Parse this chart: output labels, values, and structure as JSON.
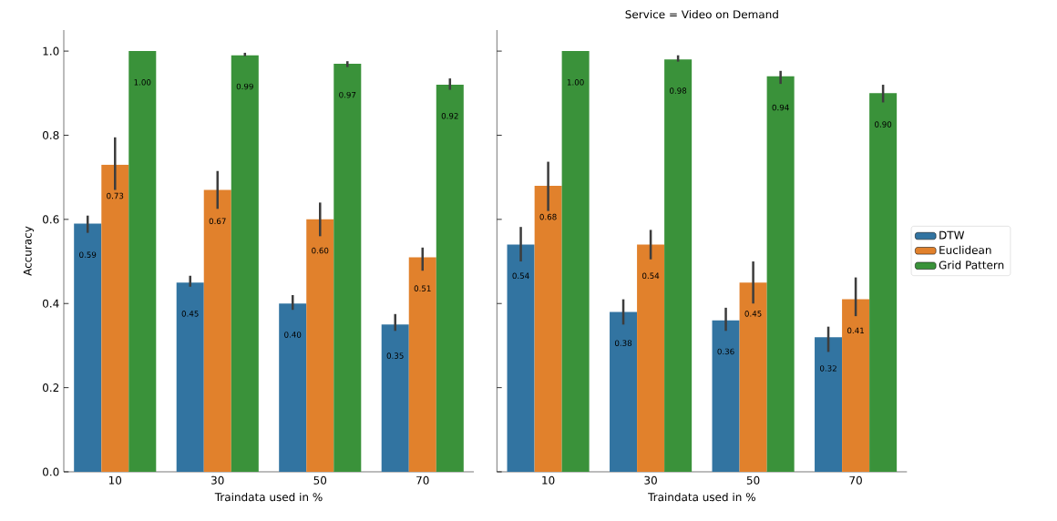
{
  "chart_data": [
    {
      "type": "bar",
      "xlabel": "Traindata used in %",
      "ylabel": "Accuracy",
      "categories": [
        "10",
        "30",
        "50",
        "70"
      ],
      "ylim": [
        0,
        1.05
      ],
      "yticks": [
        {
          "value": 0,
          "label": "0.0"
        },
        {
          "value": 0.2,
          "label": "0.2"
        },
        {
          "value": 0.4,
          "label": "0.4"
        },
        {
          "value": 0.6,
          "label": "0.6"
        },
        {
          "value": 0.8,
          "label": "0.8"
        },
        {
          "value": 1.0,
          "label": "1.0"
        }
      ],
      "data_labels": true,
      "series": [
        {
          "color": "#3274a1",
          "values": [
            0.59,
            0.45,
            0.4,
            0.35
          ],
          "value_labels": [
            "0.59",
            "0.45",
            "0.40",
            "0.35"
          ],
          "errors": [
            [
              0.568,
              0.609
            ],
            [
              0.44,
              0.466
            ],
            [
              0.385,
              0.42
            ],
            [
              0.335,
              0.375
            ]
          ]
        },
        {
          "color": "#e1812c",
          "values": [
            0.73,
            0.67,
            0.6,
            0.51
          ],
          "value_labels": [
            "0.73",
            "0.67",
            "0.60",
            "0.51"
          ],
          "errors": [
            [
              0.67,
              0.795
            ],
            [
              0.625,
              0.715
            ],
            [
              0.56,
              0.64
            ],
            [
              0.478,
              0.533
            ]
          ]
        },
        {
          "color": "#3a923a",
          "values": [
            1.0,
            0.99,
            0.97,
            0.92
          ],
          "value_labels": [
            "1.00",
            "0.99",
            "0.97",
            "0.92"
          ],
          "errors": [
            null,
            [
              0.988,
              0.996
            ],
            [
              0.962,
              0.976
            ],
            [
              0.908,
              0.935
            ]
          ]
        }
      ]
    },
    {
      "type": "bar",
      "title": "Service = Video on Demand",
      "xlabel": "Traindata used in %",
      "categories": [
        "10",
        "30",
        "50",
        "70"
      ],
      "ylim": [
        0,
        1.05
      ],
      "yticks": [
        {
          "value": 0,
          "label": null
        },
        {
          "value": 0.2,
          "label": null
        },
        {
          "value": 0.4,
          "label": null
        },
        {
          "value": 0.6,
          "label": null
        },
        {
          "value": 0.8,
          "label": null
        },
        {
          "value": 1.0,
          "label": null
        }
      ],
      "tick_labels": "x",
      "data_labels": true,
      "legend": "right",
      "series": [
        {
          "name": "DTW",
          "color": "#3274a1",
          "values": [
            0.54,
            0.38,
            0.36,
            0.32
          ],
          "value_labels": [
            "0.54",
            "0.38",
            "0.36",
            "0.32"
          ],
          "errors": [
            [
              0.5,
              0.582
            ],
            [
              0.35,
              0.41
            ],
            [
              0.335,
              0.39
            ],
            [
              0.285,
              0.345
            ]
          ]
        },
        {
          "name": "Euclidean",
          "color": "#e1812c",
          "values": [
            0.68,
            0.54,
            0.45,
            0.41
          ],
          "value_labels": [
            "0.68",
            "0.54",
            "0.45",
            "0.41"
          ],
          "errors": [
            [
              0.62,
              0.737
            ],
            [
              0.505,
              0.575
            ],
            [
              0.4,
              0.5
            ],
            [
              0.37,
              0.462
            ]
          ]
        },
        {
          "name": "Grid Pattern",
          "color": "#3a923a",
          "values": [
            1.0,
            0.98,
            0.94,
            0.9
          ],
          "value_labels": [
            "1.00",
            "0.98",
            "0.94",
            "0.90"
          ],
          "errors": [
            null,
            [
              0.975,
              0.99
            ],
            [
              0.922,
              0.953
            ],
            [
              0.878,
              0.92
            ]
          ]
        }
      ]
    }
  ]
}
